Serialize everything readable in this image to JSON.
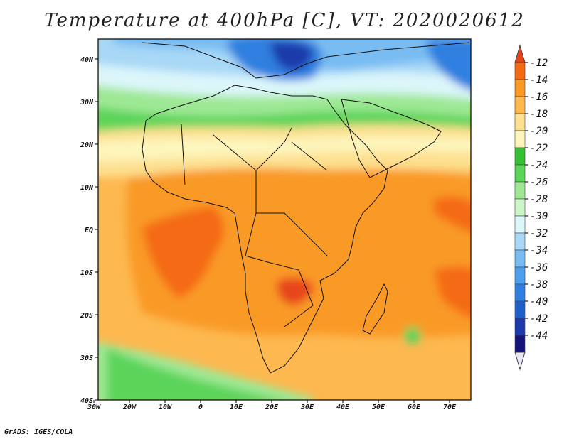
{
  "title": "Temperature at 400hPa [C], VT: 2020020612",
  "footer": "GrADS: IGES/COLA",
  "map": {
    "variable": "Temperature",
    "level": "400hPa",
    "units": "C",
    "valid_time": "2020020612",
    "lon_range": [
      -30,
      75
    ],
    "lat_range": [
      -40,
      45
    ],
    "lon_ticks": [
      "30W",
      "20W",
      "10W",
      "0",
      "10E",
      "20E",
      "30E",
      "40E",
      "50E",
      "60E",
      "70E"
    ],
    "lat_ticks": [
      "40S",
      "30S",
      "20S",
      "10S",
      "EQ",
      "10N",
      "20N",
      "30N",
      "40N"
    ]
  },
  "colorbar": {
    "levels": [
      "-12",
      "-14",
      "-16",
      "-18",
      "-20",
      "-22",
      "-24",
      "-26",
      "-28",
      "-30",
      "-32",
      "-34",
      "-36",
      "-38",
      "-40",
      "-42",
      "-44"
    ],
    "colors": [
      "#e8441a",
      "#f46a12",
      "#f99a26",
      "#fdb850",
      "#fde090",
      "#fdf5bc",
      "#34c032",
      "#5cd45a",
      "#9ee894",
      "#ccf6c8",
      "#dcf6fa",
      "#a8d8f6",
      "#78bcf2",
      "#4fa0ec",
      "#2f7fe0",
      "#1f5fc8",
      "#1e3aaa",
      "#14147a",
      "#e6e6f8"
    ]
  }
}
